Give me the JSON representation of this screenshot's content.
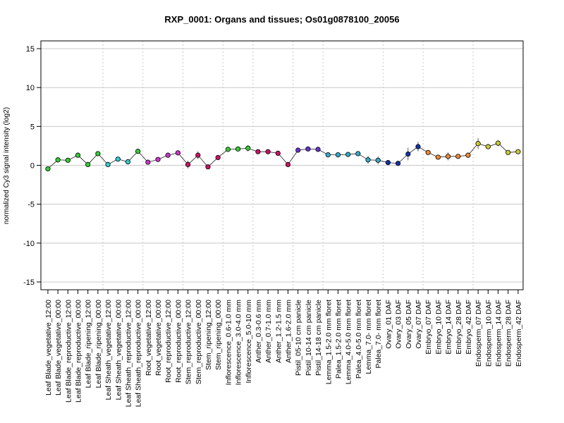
{
  "chart_data": {
    "type": "line",
    "title": "RXP_0001: Organs and tissues; Os01g0878100_20056",
    "xlabel": "",
    "ylabel": "normalized Cy3 signal intensity (log2)",
    "ylim": [
      -16,
      16
    ],
    "yticks": [
      -15,
      -10,
      -5,
      0,
      5,
      10,
      15
    ],
    "grid": true,
    "categories": [
      "Leaf Blade_vegetative_12:00",
      "Leaf Blade_vegetative_00:00",
      "Leaf Blade_reproductive_12:00",
      "Leaf Blade_reproductive_00:00",
      "Leaf Blade_ripening_12:00",
      "Leaf Blade_ripening_00:00",
      "Leaf Sheath_vegetative_12:00",
      "Leaf Sheath_vegetative_00:00",
      "Leaf Sheath_reproductive_12:00",
      "Leaf Sheath_reproductive_00:00",
      "Root_vegetative_12:00",
      "Root_vegetative_00:00",
      "Root_reproductive_12:00",
      "Root_reproductive_00:00",
      "Stem_reproductive_12:00",
      "Stem_reproductive_00:00",
      "Stem_ripening_12:00",
      "Stem_ripening_00:00",
      "Inflorescence_0.6-1.0 mm",
      "Inflorescence_3.0-4.0 mm",
      "Inflorescence_5.0-10 mm",
      "Anther_0.3-0.6 mm",
      "Anther_0.7-1.0 mm",
      "Anther_1.2-1.5 mm",
      "Anther_1.6-2.0 mm",
      "Pistil_05-10 cm panicle",
      "Pistil_10-14 cm panicle",
      "Pistil_14-18 cm panicle",
      "Lemma_1.5-2.0 mm floret",
      "Palea_1.5-2.0 mm floret",
      "Lemma_4.0-5.0 mm floret",
      "Palea_4.0-5.0 mm floret",
      "Lemma_7.0- mm floret",
      "Palea_7.0- mm floret",
      "Ovary_01 DAF",
      "Ovary_03 DAF",
      "Ovary_05 DAF",
      "Ovary_07 DAF",
      "Embryo_07 DAF",
      "Embryo_10 DAF",
      "Embryo_14 DAF",
      "Embryo_28 DAF",
      "Embryo_42 DAF",
      "Endosperm_07 DAF",
      "Endosperm_10 DAF",
      "Endosperm_14 DAF",
      "Endosperm_28 DAF",
      "Endosperm_42 DAF"
    ],
    "values": [
      -0.45,
      0.7,
      0.65,
      1.3,
      0.1,
      1.5,
      0.1,
      0.8,
      0.45,
      1.8,
      0.4,
      0.75,
      1.3,
      1.6,
      0.1,
      1.3,
      -0.2,
      1.0,
      2.05,
      2.1,
      2.2,
      1.75,
      1.75,
      1.55,
      0.1,
      1.95,
      2.1,
      2.05,
      1.35,
      1.35,
      1.4,
      1.5,
      0.7,
      0.65,
      0.35,
      0.25,
      1.45,
      2.4,
      1.65,
      1.05,
      1.15,
      1.15,
      1.3,
      2.8,
      2.4,
      2.85,
      1.65,
      1.75
    ],
    "errors": [
      0.3,
      0.15,
      0.15,
      0.3,
      0.1,
      0.2,
      0.1,
      0.15,
      0.1,
      0.2,
      0.1,
      0.1,
      0.2,
      0.2,
      0.5,
      0.5,
      0.1,
      0.2,
      0.15,
      0.2,
      0.4,
      0.2,
      0.15,
      0.2,
      0.1,
      0.1,
      0.1,
      0.1,
      0.1,
      0.1,
      0.2,
      0.2,
      0.5,
      0.5,
      0.1,
      0.1,
      0.8,
      0.6,
      0.2,
      0.1,
      0.5,
      0.3,
      0.1,
      0.7,
      0.2,
      0.4,
      0.1,
      0.1
    ],
    "colors": [
      "#33cc33",
      "#33cc33",
      "#33cc33",
      "#33cc33",
      "#33cc33",
      "#33cc33",
      "#33cccc",
      "#33cccc",
      "#33cccc",
      "#33cc33",
      "#cc33cc",
      "#cc33cc",
      "#cc33cc",
      "#cc33cc",
      "#cc1166",
      "#cc1166",
      "#cc1166",
      "#cc1166",
      "#33cc33",
      "#33cc33",
      "#33cc33",
      "#cc1166",
      "#cc1166",
      "#cc1166",
      "#cc1166",
      "#6633cc",
      "#6633cc",
      "#6633cc",
      "#33aacc",
      "#33aacc",
      "#33aacc",
      "#33aacc",
      "#33aacc",
      "#33aacc",
      "#1133aa",
      "#1133aa",
      "#1133aa",
      "#1133aa",
      "#ee8833",
      "#ee8833",
      "#ee8833",
      "#ee8833",
      "#ee8833",
      "#cccc33",
      "#cccc33",
      "#cccc33",
      "#cccc33",
      "#cccc33"
    ],
    "group_separators_after": [
      5,
      9,
      13,
      17,
      20,
      24,
      27,
      33,
      37,
      42
    ]
  }
}
